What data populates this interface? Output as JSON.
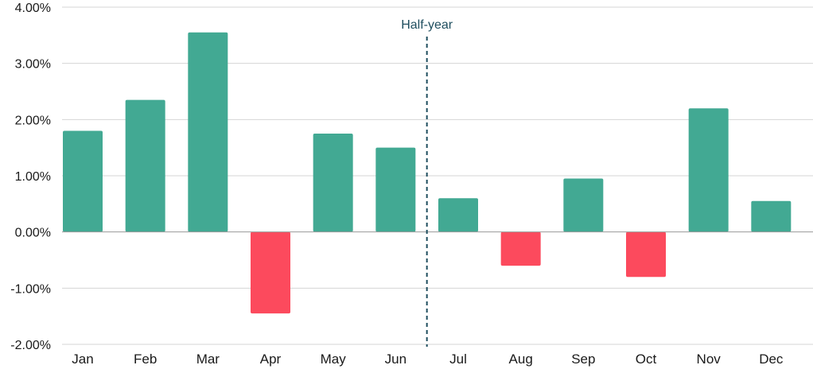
{
  "chart_data": {
    "type": "bar",
    "title": "",
    "xlabel": "",
    "ylabel": "",
    "categories": [
      "Jan",
      "Feb",
      "Mar",
      "Apr",
      "May",
      "Jun",
      "Jul",
      "Aug",
      "Sep",
      "Oct",
      "Nov",
      "Dec"
    ],
    "values": [
      1.8,
      2.35,
      3.55,
      -1.45,
      1.75,
      1.5,
      0.6,
      -0.6,
      0.95,
      -0.8,
      2.2,
      0.55
    ],
    "value_unit": "%",
    "ylim": [
      -2,
      4
    ],
    "yticks": [
      4,
      3,
      2,
      1,
      0,
      -1,
      -2
    ],
    "ytick_labels": [
      "4.00%",
      "3.00%",
      "2.00%",
      "1.00%",
      "0.00%",
      "-1.00%",
      "-2.00%"
    ],
    "grid": true,
    "legend": "none",
    "colors": {
      "positive": "#42a993",
      "negative": "#fc4a5d",
      "annotation": "#1f4e5f",
      "grid": "#d4d4d4"
    },
    "annotations": [
      {
        "type": "vertical-dashed-line",
        "label": "Half-year",
        "between": [
          "Jun",
          "Jul"
        ]
      }
    ]
  }
}
